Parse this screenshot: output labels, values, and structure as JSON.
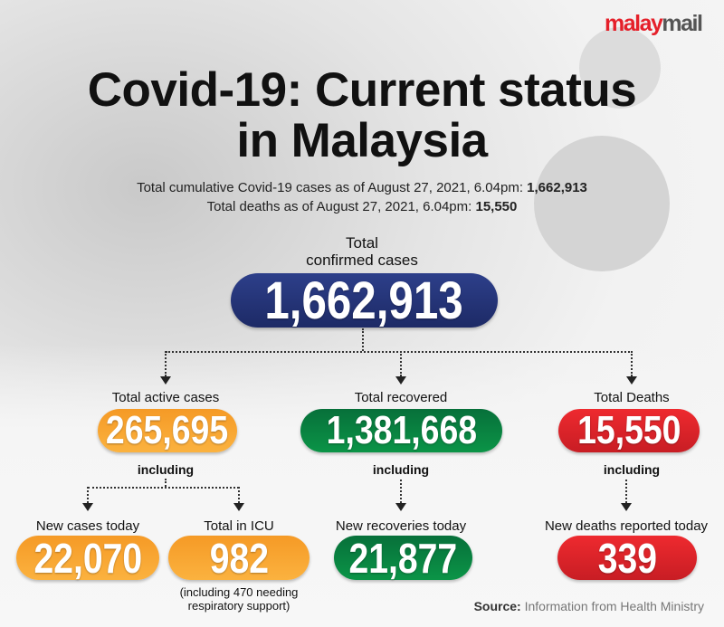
{
  "logo": {
    "part1": "malay",
    "part2": "mail"
  },
  "title": {
    "line1": "Covid-19: Current status",
    "line2": "in Malaysia"
  },
  "subtitle": {
    "cumulative_label": "Total cumulative Covid-19 cases as of August 27, 2021, 6.04pm: ",
    "cumulative_value": "1,662,913",
    "deaths_label": "Total deaths as of August 27, 2021, 6.04pm: ",
    "deaths_value": "15,550"
  },
  "confirmed": {
    "label_line1": "Total",
    "label_line2": "confirmed cases",
    "value": "1,662,913"
  },
  "active": {
    "label": "Total active cases",
    "value": "265,695",
    "including": "including",
    "new_cases": {
      "label": "New cases today",
      "value": "22,070"
    },
    "icu": {
      "label": "Total in ICU",
      "value": "982",
      "note_line1": "(including 470 needing",
      "note_line2": "respiratory support)"
    }
  },
  "recovered": {
    "label": "Total recovered",
    "value": "1,381,668",
    "including": "including",
    "new": {
      "label": "New recoveries today",
      "value": "21,877"
    }
  },
  "deaths": {
    "label": "Total Deaths",
    "value": "15,550",
    "including": "including",
    "new": {
      "label": "New deaths reported today",
      "value": "339"
    }
  },
  "source": {
    "label": "Source:",
    "text": " Information from Health Ministry"
  },
  "colors": {
    "navy": "#1d2a66",
    "orange": "#f7a530",
    "green": "#0a8040",
    "red": "#d92128",
    "brand_red": "#e5202a"
  }
}
